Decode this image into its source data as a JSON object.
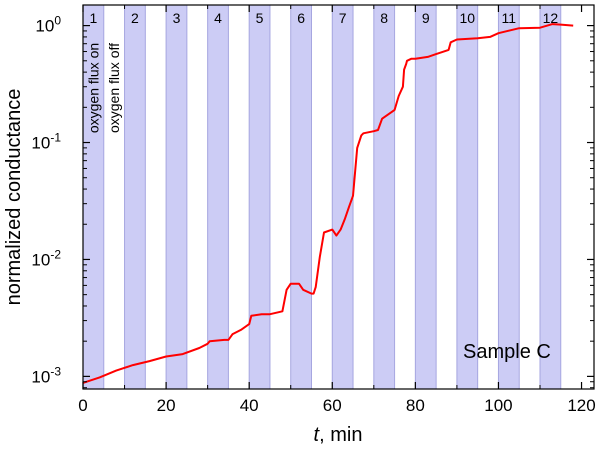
{
  "chart_data": {
    "type": "line",
    "title": "",
    "xlabel_var": "t",
    "xlabel_unit": ", min",
    "ylabel": "normalized conductance",
    "xlim": [
      0,
      123
    ],
    "ylim": [
      0.00078,
      1.5
    ],
    "yscale": "log",
    "grid": false,
    "line_color": "#ff0000",
    "band_color": "#ccccf5",
    "band_edge_color": "#a6a6e0",
    "x_ticks": [
      0,
      20,
      40,
      60,
      80,
      100,
      120
    ],
    "x_tick_labels": [
      "0",
      "20",
      "40",
      "60",
      "80",
      "100",
      "120"
    ],
    "y_ticks": [
      0.001,
      0.01,
      0.1,
      1
    ],
    "y_tick_base": [
      "10",
      "10",
      "10",
      "10"
    ],
    "y_tick_exp": [
      "-3",
      "-2",
      "-1",
      "0"
    ],
    "oxygen_on_label": "oxygen flux on",
    "oxygen_off_label": "oxygen flux off",
    "bands": [
      {
        "label": "1",
        "x": [
          0,
          5
        ]
      },
      {
        "label": "2",
        "x": [
          10,
          15
        ]
      },
      {
        "label": "3",
        "x": [
          20,
          25
        ]
      },
      {
        "label": "4",
        "x": [
          30,
          35
        ]
      },
      {
        "label": "5",
        "x": [
          40,
          45
        ]
      },
      {
        "label": "6",
        "x": [
          50,
          55
        ]
      },
      {
        "label": "7",
        "x": [
          60,
          65
        ]
      },
      {
        "label": "8",
        "x": [
          70,
          75
        ]
      },
      {
        "label": "9",
        "x": [
          80,
          85
        ]
      },
      {
        "label": "10",
        "x": [
          90,
          95
        ]
      },
      {
        "label": "11",
        "x": [
          100,
          105
        ]
      },
      {
        "label": "12",
        "x": [
          110,
          115
        ]
      }
    ],
    "annotation": "Sample C",
    "series": [
      {
        "x": [
          0,
          4,
          8,
          12,
          16,
          20,
          24,
          28,
          30,
          30.5,
          34,
          35,
          36,
          38,
          40,
          40.5,
          43,
          45,
          48,
          49,
          50,
          52,
          53,
          55,
          55.5,
          56,
          57,
          58,
          60,
          61,
          62,
          63,
          64,
          65,
          66,
          67,
          67.5,
          70,
          71,
          72,
          75,
          76,
          77,
          77.3,
          77.8,
          78,
          79,
          80,
          83,
          85,
          88,
          88.5,
          90,
          95,
          98,
          100,
          105,
          110,
          113,
          115,
          118
        ],
        "y": [
          0.00088,
          0.00098,
          0.00112,
          0.00125,
          0.00135,
          0.00148,
          0.00155,
          0.00175,
          0.0019,
          0.002,
          0.00205,
          0.00205,
          0.0023,
          0.0025,
          0.0028,
          0.0033,
          0.0034,
          0.0034,
          0.0036,
          0.0055,
          0.0062,
          0.0062,
          0.0055,
          0.0051,
          0.0051,
          0.0058,
          0.0105,
          0.017,
          0.018,
          0.016,
          0.018,
          0.022,
          0.028,
          0.035,
          0.09,
          0.115,
          0.12,
          0.125,
          0.128,
          0.16,
          0.19,
          0.25,
          0.3,
          0.42,
          0.47,
          0.5,
          0.52,
          0.52,
          0.54,
          0.57,
          0.62,
          0.72,
          0.76,
          0.78,
          0.8,
          0.86,
          0.95,
          0.96,
          1.03,
          1.02,
          1.0
        ]
      }
    ]
  }
}
